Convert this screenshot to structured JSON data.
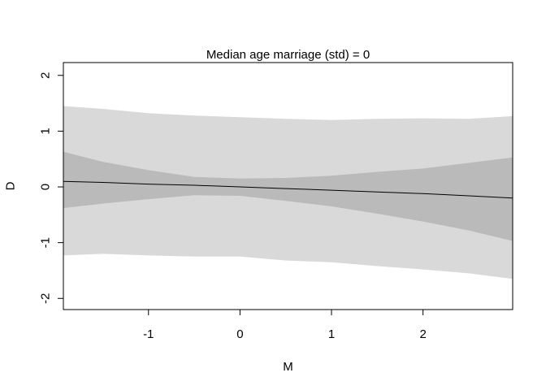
{
  "chart_data": {
    "type": "line",
    "title": "Median age marriage (std) = 0",
    "xlabel": "M",
    "ylabel": "D",
    "xlim": [
      -1.93,
      2.98
    ],
    "ylim": [
      -2.2,
      2.23
    ],
    "xticks": [
      -1,
      0,
      1,
      2
    ],
    "xtick_labels": [
      "-1",
      "0",
      "1",
      "2"
    ],
    "yticks": [
      -2,
      -1,
      0,
      1,
      2
    ],
    "ytick_labels": [
      "-2",
      "-1",
      "0",
      "1",
      "2"
    ],
    "colors": {
      "outer_band": "#d9d9d9",
      "inner_band": "#bababa",
      "line": "#000000",
      "axis": "#000000"
    },
    "x": [
      -1.93,
      -1.5,
      -1.0,
      -0.5,
      0.0,
      0.5,
      1.0,
      1.5,
      2.0,
      2.5,
      2.98
    ],
    "series": [
      {
        "name": "mean",
        "values": [
          0.1,
          0.08,
          0.05,
          0.03,
          0.0,
          -0.03,
          -0.06,
          -0.09,
          -0.12,
          -0.16,
          -0.2
        ]
      },
      {
        "name": "prediction_interval",
        "lower": [
          -1.23,
          -1.2,
          -1.23,
          -1.25,
          -1.25,
          -1.32,
          -1.35,
          -1.42,
          -1.48,
          -1.55,
          -1.65
        ],
        "upper": [
          1.45,
          1.4,
          1.32,
          1.28,
          1.25,
          1.22,
          1.2,
          1.22,
          1.23,
          1.22,
          1.27
        ]
      },
      {
        "name": "mean_interval",
        "lower": [
          -0.38,
          -0.3,
          -0.22,
          -0.15,
          -0.16,
          -0.25,
          -0.35,
          -0.48,
          -0.62,
          -0.78,
          -0.97
        ],
        "upper": [
          0.63,
          0.45,
          0.3,
          0.18,
          0.15,
          0.16,
          0.2,
          0.27,
          0.33,
          0.43,
          0.53
        ]
      }
    ]
  }
}
